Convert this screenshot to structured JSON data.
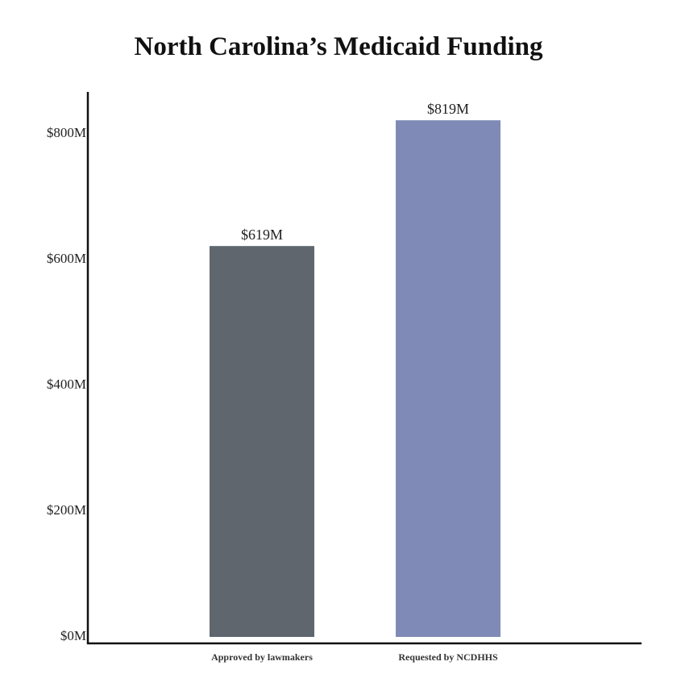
{
  "chart_data": {
    "type": "bar",
    "title": "North Carolina’s Medicaid Funding",
    "categories": [
      "Approved by lawmakers",
      "Requested by NCDHHS"
    ],
    "values": [
      619,
      819
    ],
    "data_labels": [
      "$619M",
      "$819M"
    ],
    "colors": [
      "#5f666e",
      "#7f8bb6"
    ],
    "xlabel": "",
    "ylabel": "",
    "ylim": [
      0,
      870
    ],
    "yticks": [
      0,
      200,
      400,
      600,
      800
    ],
    "ytick_labels": [
      "$0M",
      "$200M",
      "$400M",
      "$600M",
      "$800M"
    ],
    "grid": false
  }
}
